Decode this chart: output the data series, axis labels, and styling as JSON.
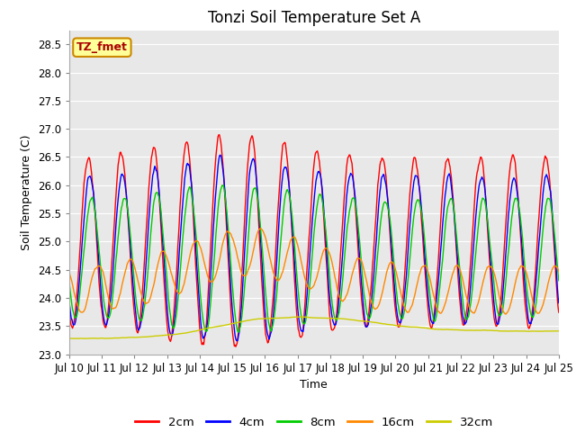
{
  "title": "Tonzi Soil Temperature Set A",
  "xlabel": "Time",
  "ylabel": "Soil Temperature (C)",
  "annotation": "TZ_fmet",
  "ylim": [
    23.0,
    28.75
  ],
  "yticks": [
    23.0,
    23.5,
    24.0,
    24.5,
    25.0,
    25.5,
    26.0,
    26.5,
    27.0,
    27.5,
    28.0,
    28.5
  ],
  "xtick_labels": [
    "Jul 10",
    "Jul 11",
    "Jul 12",
    "Jul 13",
    "Jul 14",
    "Jul 15",
    "Jul 16",
    "Jul 17",
    "Jul 18",
    "Jul 19",
    "Jul 20",
    "Jul 21",
    "Jul 22",
    "Jul 23",
    "Jul 24",
    "Jul 25"
  ],
  "colors": {
    "2cm": "#ff0000",
    "4cm": "#0000ff",
    "8cm": "#00cc00",
    "16cm": "#ff8800",
    "32cm": "#cccc00"
  },
  "annotation_bg": "#ffff99",
  "annotation_border": "#cc8800",
  "annotation_text_color": "#aa0000",
  "title_fontsize": 12,
  "label_fontsize": 9,
  "tick_fontsize": 8.5
}
